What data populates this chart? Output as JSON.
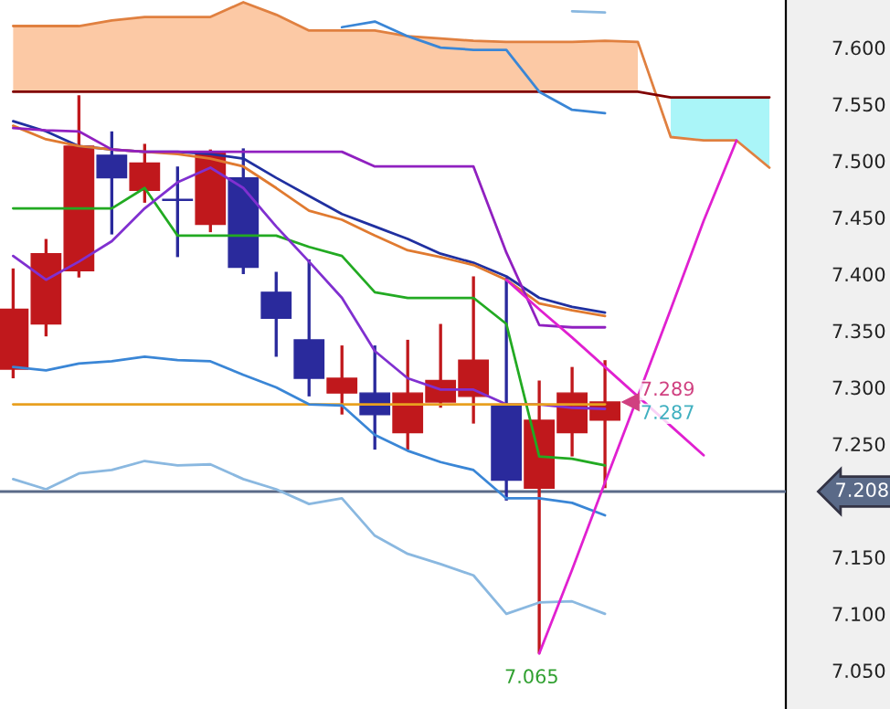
{
  "chart_data": {
    "type": "candlestick",
    "categories": [
      null,
      null,
      null,
      null,
      null,
      null,
      null,
      null,
      null,
      null,
      null,
      null,
      null,
      null,
      null,
      null,
      null,
      null,
      null,
      null,
      null,
      null,
      null,
      null
    ],
    "ohlc": [
      [
        7.316,
        7.405,
        7.308,
        7.369
      ],
      [
        7.356,
        7.431,
        7.345,
        7.418
      ],
      [
        7.403,
        7.558,
        7.397,
        7.513
      ],
      [
        7.505,
        7.526,
        7.435,
        7.485
      ],
      [
        7.474,
        7.515,
        7.463,
        7.498
      ],
      [
        7.466,
        7.495,
        7.415,
        7.465
      ],
      [
        7.444,
        7.51,
        7.437,
        7.508
      ],
      [
        7.485,
        7.511,
        7.4,
        7.406
      ],
      [
        7.384,
        7.402,
        7.327,
        7.361
      ],
      [
        7.342,
        7.413,
        7.292,
        7.308
      ],
      [
        7.295,
        7.337,
        7.276,
        7.308
      ],
      [
        7.295,
        7.337,
        7.245,
        7.276
      ],
      [
        7.26,
        7.342,
        7.245,
        7.295
      ],
      [
        7.287,
        7.356,
        7.282,
        7.306
      ],
      [
        7.292,
        7.398,
        7.268,
        7.324
      ],
      [
        7.284,
        7.397,
        7.2,
        7.218
      ],
      [
        7.211,
        7.306,
        7.065,
        7.271
      ],
      [
        7.26,
        7.318,
        7.239,
        7.295
      ],
      [
        7.271,
        7.324,
        7.211,
        7.287
      ],
      null,
      null,
      null,
      null,
      null
    ],
    "colors": [
      "#c0181c",
      "#c0181c",
      "#c0181c",
      "#2a2a9c",
      "#c0181c",
      "#2a2a9c",
      "#c0181c",
      "#2a2a9c",
      "#2a2a9c",
      "#2a2a9c",
      "#c0181c",
      "#2a2a9c",
      "#c0181c",
      "#c0181c",
      "#c0181c",
      "#2a2a9c",
      "#c0181c",
      "#c0181c",
      "#c0181c",
      null,
      null,
      null,
      null,
      null
    ],
    "series": [
      {
        "type": "line",
        "color": "#e08040",
        "values": [
          7.619,
          7.619,
          7.619,
          7.624,
          7.627,
          7.627,
          7.627,
          7.64,
          7.629,
          7.615,
          7.615,
          7.615,
          7.61,
          7.608,
          7.606,
          7.605,
          7.605,
          7.605,
          7.606,
          7.605,
          7.521,
          7.518,
          7.518,
          7.494
        ],
        "lower": [
          7.561,
          7.561,
          7.561,
          7.561,
          7.561,
          7.561,
          7.561,
          7.561,
          7.561,
          7.561,
          7.561,
          7.561,
          7.561,
          7.561,
          7.561,
          7.561,
          7.561,
          7.561,
          7.561,
          7.561,
          null,
          null,
          null,
          null
        ],
        "upper": [
          7.619,
          7.619,
          7.619,
          7.624,
          7.627,
          7.627,
          7.627,
          7.64,
          7.629,
          7.615,
          7.615,
          7.615,
          7.61,
          7.608,
          7.606,
          7.605,
          7.605,
          7.605,
          7.606,
          7.605,
          null,
          null,
          null,
          null
        ]
      },
      {
        "type": "line",
        "color": "#800000",
        "values": [
          7.561,
          7.561,
          7.561,
          7.561,
          7.561,
          7.561,
          7.561,
          7.561,
          7.561,
          7.561,
          7.561,
          7.561,
          7.561,
          7.561,
          7.561,
          7.561,
          7.561,
          7.561,
          7.561,
          7.561,
          7.556,
          7.556,
          7.556,
          7.556
        ],
        "lower": [
          null,
          null,
          null,
          null,
          null,
          null,
          null,
          null,
          null,
          null,
          null,
          null,
          null,
          null,
          null,
          null,
          null,
          null,
          null,
          null,
          7.521,
          7.518,
          7.518,
          7.494
        ],
        "upper": [
          null,
          null,
          null,
          null,
          null,
          null,
          null,
          null,
          null,
          null,
          null,
          null,
          null,
          null,
          null,
          null,
          null,
          null,
          null,
          null,
          7.556,
          7.556,
          7.556,
          7.556
        ]
      },
      {
        "type": "line",
        "color": "#8ab8e0",
        "values": [
          null,
          null,
          null,
          null,
          null,
          null,
          null,
          null,
          null,
          null,
          null,
          null,
          null,
          null,
          null,
          null,
          null,
          7.632,
          7.631,
          null,
          null,
          null,
          null,
          null
        ]
      },
      {
        "type": "line",
        "color": "#3a86d6",
        "values": [
          null,
          null,
          null,
          null,
          null,
          null,
          null,
          null,
          null,
          null,
          7.618,
          7.623,
          7.61,
          7.6,
          7.598,
          7.598,
          7.561,
          7.545,
          7.542,
          null,
          null,
          null,
          null,
          null
        ]
      },
      {
        "type": "line",
        "color": "#2030a0",
        "values": [
          7.535,
          7.526,
          7.513,
          7.51,
          7.508,
          7.508,
          7.506,
          7.502,
          7.485,
          7.469,
          7.453,
          7.442,
          7.431,
          7.418,
          7.41,
          7.398,
          7.379,
          7.371,
          7.366,
          null,
          null,
          null,
          null,
          null
        ]
      },
      {
        "type": "line",
        "color": "#e07a30",
        "values": [
          7.531,
          7.519,
          7.513,
          7.51,
          7.508,
          7.506,
          7.502,
          7.495,
          7.476,
          7.456,
          7.448,
          7.434,
          7.421,
          7.415,
          7.408,
          7.395,
          7.374,
          7.368,
          7.363,
          null,
          null,
          null,
          null,
          null
        ]
      },
      {
        "type": "line",
        "color": "#9020c0",
        "values": [
          7.529,
          7.527,
          7.526,
          7.51,
          7.508,
          7.508,
          7.508,
          7.508,
          7.508,
          7.508,
          7.508,
          7.495,
          7.495,
          7.495,
          7.495,
          7.419,
          7.355,
          7.353,
          7.353,
          null,
          null,
          null,
          null,
          null
        ]
      },
      {
        "type": "line",
        "color": "#22aa22",
        "values": [
          7.458,
          7.458,
          7.458,
          7.458,
          7.476,
          7.434,
          7.434,
          7.434,
          7.434,
          7.424,
          7.416,
          7.384,
          7.379,
          7.379,
          7.379,
          7.356,
          7.239,
          7.237,
          7.231,
          null,
          null,
          null,
          null,
          null
        ]
      },
      {
        "type": "line",
        "color": "#8030d0",
        "values": [
          7.416,
          7.395,
          7.411,
          7.429,
          7.458,
          7.481,
          7.494,
          7.476,
          7.442,
          7.411,
          7.379,
          7.332,
          7.308,
          7.298,
          7.298,
          7.285,
          7.285,
          7.282,
          7.281,
          null,
          null,
          null,
          null,
          null
        ]
      },
      {
        "type": "line",
        "color": "#e8a020",
        "values": [
          7.285,
          7.285,
          7.285,
          7.285,
          7.285,
          7.285,
          7.285,
          7.285,
          7.285,
          7.285,
          7.285,
          7.285,
          7.285,
          7.285,
          7.285,
          7.285,
          7.285,
          7.285,
          7.285,
          null,
          null,
          null,
          null,
          null
        ]
      },
      {
        "type": "line",
        "color": "#3a86d6",
        "values": [
          7.318,
          7.315,
          7.321,
          7.323,
          7.327,
          7.324,
          7.323,
          7.311,
          7.3,
          7.285,
          7.284,
          7.258,
          7.244,
          7.234,
          7.227,
          7.202,
          7.202,
          7.198,
          7.187,
          null,
          null,
          null,
          null,
          null
        ]
      },
      {
        "type": "line",
        "color": "#8ab8e0",
        "values": [
          7.219,
          7.21,
          7.224,
          7.227,
          7.235,
          7.231,
          7.232,
          7.219,
          7.21,
          7.197,
          7.202,
          7.169,
          7.153,
          7.144,
          7.134,
          7.1,
          7.11,
          7.111,
          7.1,
          null,
          null,
          null,
          null,
          null
        ]
      },
      {
        "type": "line",
        "color": "#e020d0",
        "values": [
          null,
          null,
          null,
          null,
          null,
          null,
          null,
          null,
          null,
          null,
          null,
          null,
          null,
          null,
          null,
          7.395,
          7.369,
          7.344,
          7.318,
          7.292,
          7.266,
          7.24,
          null,
          null
        ]
      },
      {
        "type": "line",
        "color": "#e020d0",
        "values": [
          null,
          null,
          null,
          null,
          null,
          null,
          null,
          null,
          null,
          null,
          null,
          null,
          null,
          null,
          null,
          null,
          7.065,
          7.139,
          7.216,
          7.292,
          7.369,
          7.447,
          7.518,
          null
        ]
      }
    ],
    "ylim": [
      7.016,
      7.642
    ],
    "yticks": [
      {
        "value": 7.05,
        "label": "7.050"
      },
      {
        "value": 7.1,
        "label": "7.100"
      },
      {
        "value": 7.15,
        "label": "7.150"
      },
      {
        "value": 7.25,
        "label": "7.250"
      },
      {
        "value": 7.3,
        "label": "7.300"
      },
      {
        "value": 7.35,
        "label": "7.350"
      },
      {
        "value": 7.4,
        "label": "7.400"
      },
      {
        "value": 7.45,
        "label": "7.450"
      },
      {
        "value": 7.5,
        "label": "7.500"
      },
      {
        "value": 7.55,
        "label": "7.550"
      },
      {
        "value": 7.6,
        "label": "7.600"
      }
    ],
    "ref_lines": [
      {
        "axis": "y",
        "value": 7.208,
        "label": "7.208",
        "color": "#5a6a88"
      }
    ],
    "annotations": [
      "7.289",
      "7.287",
      {
        "text": "7.065",
        "y": 7.065
      }
    ],
    "tick_labels": "y",
    "grid": false,
    "legend": false,
    "line_style": "solid",
    "marker": "none"
  }
}
